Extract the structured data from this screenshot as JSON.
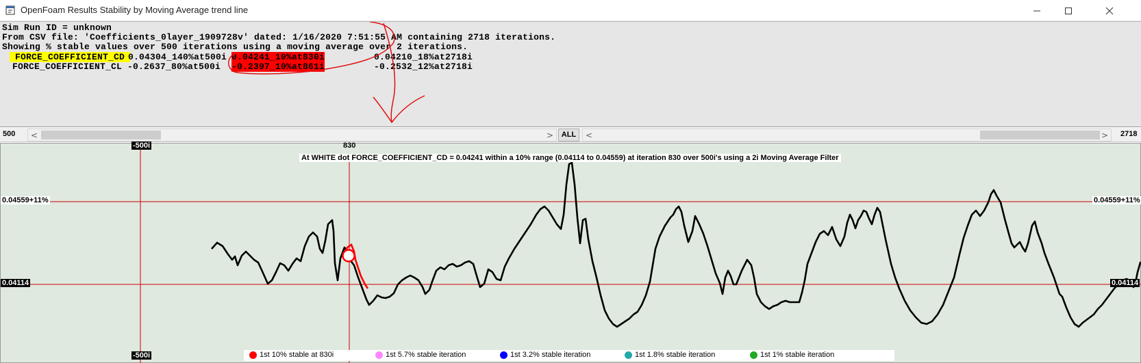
{
  "window": {
    "title": "OpenFoam Results Stability by Moving Average trend line",
    "icon": "app-window-icon"
  },
  "info": {
    "line1": "Sim Run ID = unknown",
    "line2": "From CSV file: 'Coefficients_0layer_1909728v' dated: 1/16/2020 7:51:55 AM containing 2718 iterations.",
    "line3": "Showing % stable values over 500 iterations using a moving average over 2 iterations.",
    "rows": [
      {
        "name": " FORCE_COEFFICIENT_CD ",
        "at500": "0.04304_140%at500i",
        "stable": "0.04241_10%at830i",
        "end": "0.04210_18%at2718i"
      },
      {
        "name": "FORCE_COEFFICIENT_CL",
        "at500": "-0.2637_80%at500i",
        "stable": "-0.2397_10%at861i",
        "end": "-0.2532_12%at2718i"
      }
    ]
  },
  "scroll": {
    "left_value": "500",
    "all_label": "ALL",
    "right_value": "2718",
    "left_arrow": "<",
    "right_arrow": ">"
  },
  "plot": {
    "caption": "At WHITE dot FORCE_COEFFICIENT_CD = 0.04241 within a 10% range (0.04114 to 0.04559) at iteration 830 over 500i's using a 2i Moving Average Filter",
    "marker_iteration": "830",
    "window_label_top": "-500i",
    "window_label_bottom": "-500i",
    "upper_label_left": "0.04559+11%",
    "upper_label_right": "0.04559+11%",
    "lower_label_left": "0.04114",
    "lower_label_right": "0.04114",
    "line_color": "#000000",
    "range_color": "#cc0000",
    "background": "#dfe9df"
  },
  "legend": [
    {
      "label": "1st 10% stable at 830i",
      "color": "#ff0000"
    },
    {
      "label": "1st 5.7% stable iteration",
      "color": "#ff88ff"
    },
    {
      "label": "1st 3.2% stable iteration",
      "color": "#0000ff"
    },
    {
      "label": "1st 1.8% stable iteration",
      "color": "#22aaaa"
    },
    {
      "label": "1st 1% stable iteration",
      "color": "#22aa22"
    }
  ]
}
